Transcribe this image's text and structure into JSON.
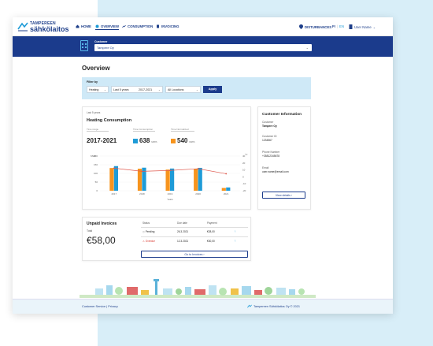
{
  "brand": {
    "top": "TAMPEREEN",
    "bottom": "sähkölaitos"
  },
  "nav": {
    "items": [
      {
        "label": "Home",
        "icon": "home-icon"
      },
      {
        "label": "Overview",
        "icon": "gauge-icon"
      },
      {
        "label": "Consumption",
        "icon": "chart-icon"
      },
      {
        "label": "Invoicing",
        "icon": "document-icon"
      }
    ],
    "disturbances": "Disturbances",
    "lang_fi": "FI",
    "lang_en": "EN",
    "user": "User Name"
  },
  "customer_bar": {
    "label": "Customer",
    "selected": "Tampere Oy"
  },
  "page_title": "Overview",
  "filter": {
    "label": "Filter by",
    "type": "Heating",
    "period": "Last 5 years",
    "range": "2017-2021",
    "location": "All Locations",
    "apply": "Apply"
  },
  "heating": {
    "small_label": "Last 5 years",
    "title": "Heating Consumption",
    "stat1_label": "Time range",
    "stat1_value": "2017-2021",
    "stat2_label": "Time Consumption",
    "stat2_value": "638",
    "stat2_unit": "MWh",
    "stat3_label": "Time Normalized",
    "stat3_value": "540",
    "stat3_unit": "MWh"
  },
  "chart_data": {
    "type": "bar",
    "categories": [
      "2017",
      "2018",
      "2019",
      "2020",
      "2021"
    ],
    "series": [
      {
        "type": "bar",
        "color": "#f7941d",
        "values": [
          131,
          127,
          122,
          126,
          16
        ]
      },
      {
        "type": "bar",
        "color": "#1e9bd7",
        "values": [
          142,
          133,
          128,
          132,
          19
        ]
      },
      {
        "type": "line",
        "color": "#e05a4f",
        "values": [
          130,
          112,
          117,
          127,
          98
        ]
      }
    ],
    "ylim": [
      0,
      200
    ],
    "y_ticks": [
      "200",
      "150",
      "100",
      "50",
      "0"
    ],
    "y2_ticks": [
      "40",
      "20",
      "10",
      "0",
      "-10",
      "-20"
    ],
    "xlabel": "Years",
    "ylabel": "MWh",
    "y2label": "°C"
  },
  "customer_info": {
    "title": "Customer Information",
    "customer_label": "Customer",
    "customer_value": "Tampere Oy",
    "id_label": "Customer ID",
    "id_value": "1234567",
    "phone_label": "Phone Number",
    "phone_value": "+35812345678",
    "email_label": "Email",
    "email_value": "user.name@email.com",
    "details_button": "View details"
  },
  "unpaid": {
    "title": "Unpaid Invoices",
    "total_label": "Total",
    "total_value": "€58,00",
    "headers": [
      "Status",
      "Due date",
      "Payment"
    ],
    "rows": [
      {
        "status": "Pending",
        "due": "26.3.2021",
        "amount": "€28,00"
      },
      {
        "status": "Overdue",
        "due": "12.3.2021",
        "amount": "€30,00"
      }
    ],
    "goto": "Go to Invoices"
  },
  "footer": {
    "links": "Customer Service  |  Privacy",
    "copyright": "Tampereen Sähkölaitos Oy © 2021"
  },
  "colors": {
    "brand_navy": "#1b3b8c",
    "accent_blue": "#1e9bd7",
    "accent_orange": "#f7941d",
    "light_blue": "#cfe9f7"
  }
}
